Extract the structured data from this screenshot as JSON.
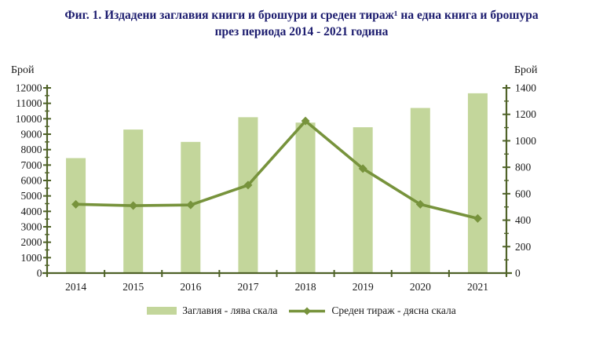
{
  "title": {
    "line1": "Фиг. 1. Издадени заглавия книги и брошури и среден тираж¹ на една книга и брошура",
    "line2": "през периода 2014 - 2021 година"
  },
  "colors": {
    "bar": "#c3d69b",
    "line": "#77933c",
    "axis": "#4f6228",
    "tick_text": "#1a1a1a",
    "title_text": "#1b1b6e"
  },
  "chart_data": {
    "type": "bar+line combo",
    "categories": [
      "2014",
      "2015",
      "2016",
      "2017",
      "2018",
      "2019",
      "2020",
      "2021"
    ],
    "series": [
      {
        "name": "Заглавия - лява скала",
        "type": "bar",
        "axis": "left",
        "values": [
          7450,
          9300,
          8500,
          10100,
          9750,
          9450,
          10700,
          11650
        ]
      },
      {
        "name": "Среден тираж - дясна скала",
        "type": "line",
        "axis": "right",
        "values": [
          520,
          510,
          515,
          665,
          1150,
          790,
          520,
          413
        ]
      }
    ],
    "left_axis": {
      "label": "Брой",
      "min": 0,
      "max": 12000,
      "major_step": 1000,
      "minor_step": 500
    },
    "right_axis": {
      "label": "Брой",
      "min": 0,
      "max": 1400,
      "major_step": 200,
      "minor_step": 100
    },
    "legend_position": "bottom",
    "grid": false
  }
}
